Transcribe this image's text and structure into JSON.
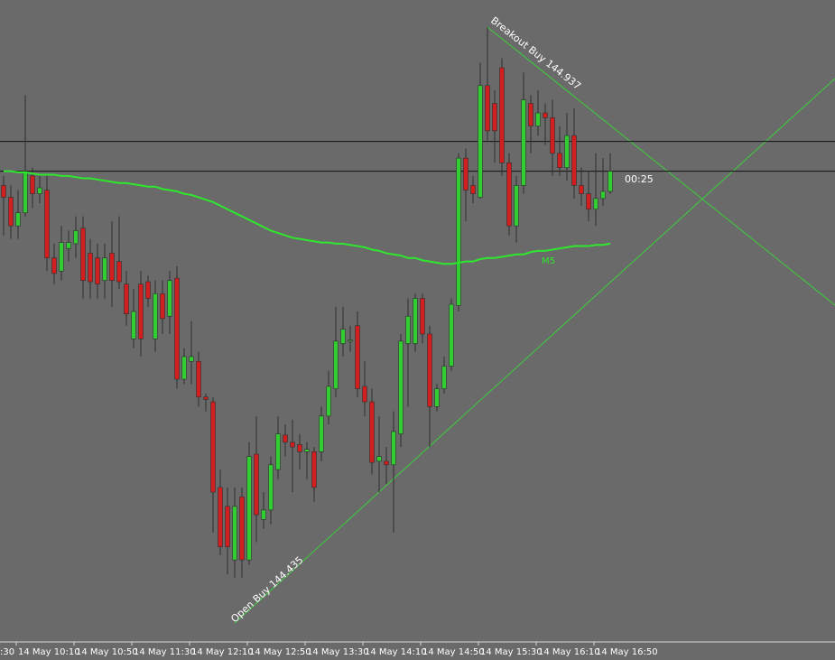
{
  "chart_data": {
    "type": "candlestick",
    "categories": [
      ":30",
      null,
      "14 May 10:10",
      null,
      null,
      null,
      null,
      null,
      null,
      null,
      "14 May 10:50",
      null,
      null,
      null,
      null,
      null,
      null,
      null,
      "14 May 11:30",
      null,
      null,
      null,
      null,
      null,
      null,
      null,
      "14 May 12:10",
      null,
      null,
      null,
      null,
      null,
      null,
      null,
      "14 May 12:50",
      null,
      null,
      null,
      null,
      null,
      null,
      null,
      "14 May 13:30",
      null,
      null,
      null,
      null,
      null,
      null,
      null,
      "14 May 14:10",
      null,
      null,
      null,
      null,
      null,
      null,
      null,
      "14 May 14:50",
      null,
      null,
      null,
      null,
      null,
      null,
      null,
      "14 May 15:30",
      null,
      null,
      null,
      null,
      null,
      null,
      null,
      "14 May 16:10",
      null,
      null,
      null,
      null,
      null,
      null,
      null,
      "14 May 16:50",
      null,
      null
    ],
    "ohlc": [
      [
        144.804,
        144.812,
        144.762,
        144.794
      ],
      [
        144.794,
        144.804,
        144.759,
        144.77
      ],
      [
        144.77,
        144.8,
        144.759,
        144.781
      ],
      [
        144.781,
        144.88,
        144.778,
        144.816
      ],
      [
        144.812,
        144.819,
        144.785,
        144.797
      ],
      [
        144.797,
        144.812,
        144.789,
        144.802
      ],
      [
        144.8,
        144.812,
        144.732,
        144.743
      ],
      [
        144.743,
        144.755,
        144.721,
        144.73
      ],
      [
        144.732,
        144.77,
        144.724,
        144.756
      ],
      [
        144.751,
        144.766,
        144.74,
        144.756
      ],
      [
        144.755,
        144.778,
        144.743,
        144.766
      ],
      [
        144.768,
        144.778,
        144.709,
        144.724
      ],
      [
        144.747,
        144.759,
        144.709,
        144.723
      ],
      [
        144.743,
        144.755,
        144.709,
        144.721
      ],
      [
        144.724,
        144.755,
        144.709,
        144.743
      ],
      [
        144.747,
        144.774,
        144.702,
        144.724
      ],
      [
        144.74,
        144.778,
        144.717,
        144.723
      ],
      [
        144.721,
        144.732,
        144.686,
        144.696
      ],
      [
        144.675,
        144.717,
        144.667,
        144.698
      ],
      [
        144.721,
        144.732,
        144.66,
        144.675
      ],
      [
        144.723,
        144.728,
        144.702,
        144.709
      ],
      [
        144.675,
        144.724,
        144.664,
        144.713
      ],
      [
        144.713,
        144.724,
        144.679,
        144.692
      ],
      [
        144.694,
        144.732,
        144.679,
        144.724
      ],
      [
        144.726,
        144.736,
        144.633,
        144.641
      ],
      [
        144.641,
        144.667,
        144.637,
        144.66
      ],
      [
        144.656,
        144.69,
        144.637,
        144.66
      ],
      [
        144.656,
        144.664,
        144.618,
        144.626
      ],
      [
        144.626,
        144.629,
        144.614,
        144.624
      ],
      [
        144.622,
        144.626,
        144.512,
        144.546
      ],
      [
        144.55,
        144.565,
        144.493,
        144.5
      ],
      [
        144.534,
        144.55,
        144.477,
        144.5
      ],
      [
        144.489,
        144.55,
        144.474,
        144.534
      ],
      [
        144.542,
        144.55,
        144.474,
        144.489
      ],
      [
        144.489,
        144.588,
        144.485,
        144.576
      ],
      [
        144.578,
        144.61,
        144.504,
        144.527
      ],
      [
        144.523,
        144.546,
        144.515,
        144.531
      ],
      [
        144.531,
        144.576,
        144.519,
        144.569
      ],
      [
        144.565,
        144.61,
        144.557,
        144.595
      ],
      [
        144.594,
        144.603,
        144.576,
        144.588
      ],
      [
        144.588,
        144.607,
        144.546,
        144.584
      ],
      [
        144.586,
        144.595,
        144.565,
        144.58
      ],
      [
        144.58,
        144.588,
        144.557,
        144.582
      ],
      [
        144.58,
        144.584,
        144.538,
        144.55
      ],
      [
        144.58,
        144.618,
        144.572,
        144.61
      ],
      [
        144.61,
        144.648,
        144.603,
        144.635
      ],
      [
        144.633,
        144.702,
        144.626,
        144.673
      ],
      [
        144.671,
        144.702,
        144.66,
        144.683
      ],
      [
        144.673,
        144.686,
        144.664,
        144.674
      ],
      [
        144.686,
        144.698,
        144.626,
        144.633
      ],
      [
        144.635,
        144.656,
        144.61,
        144.622
      ],
      [
        144.622,
        144.633,
        144.561,
        144.571
      ],
      [
        144.572,
        144.61,
        144.546,
        144.576
      ],
      [
        144.572,
        144.584,
        144.553,
        144.569
      ],
      [
        144.569,
        144.614,
        144.512,
        144.597
      ],
      [
        144.595,
        144.679,
        144.584,
        144.673
      ],
      [
        144.671,
        144.709,
        144.618,
        144.694
      ],
      [
        144.671,
        144.713,
        144.664,
        144.709
      ],
      [
        144.709,
        144.713,
        144.671,
        144.679
      ],
      [
        144.679,
        144.686,
        144.584,
        144.618
      ],
      [
        144.618,
        144.637,
        144.614,
        144.633
      ],
      [
        144.633,
        144.66,
        144.629,
        144.652
      ],
      [
        144.652,
        144.709,
        144.648,
        144.704
      ],
      [
        144.703,
        144.831,
        144.698,
        144.827
      ],
      [
        144.827,
        144.835,
        144.774,
        144.8
      ],
      [
        144.804,
        144.812,
        144.789,
        144.797
      ],
      [
        144.794,
        144.907,
        144.793,
        144.888
      ],
      [
        144.888,
        144.937,
        144.842,
        144.85
      ],
      [
        144.873,
        144.884,
        144.823,
        144.85
      ],
      [
        144.903,
        144.911,
        144.812,
        144.823
      ],
      [
        144.823,
        144.831,
        144.762,
        144.77
      ],
      [
        144.77,
        144.812,
        144.756,
        144.804
      ],
      [
        144.804,
        144.899,
        144.797,
        144.876
      ],
      [
        144.873,
        144.88,
        144.831,
        144.854
      ],
      [
        144.854,
        144.884,
        144.846,
        144.865
      ],
      [
        144.865,
        144.873,
        144.838,
        144.861
      ],
      [
        144.861,
        144.876,
        144.812,
        144.831
      ],
      [
        144.831,
        144.854,
        144.812,
        144.819
      ],
      [
        144.819,
        144.865,
        144.808,
        144.846
      ],
      [
        144.846,
        144.869,
        144.793,
        144.804
      ],
      [
        144.804,
        144.819,
        144.787,
        144.797
      ],
      [
        144.797,
        144.816,
        144.774,
        144.784
      ],
      [
        144.784,
        144.831,
        144.77,
        144.793
      ],
      [
        144.793,
        144.827,
        144.787,
        144.799
      ],
      [
        144.799,
        144.831,
        144.797,
        144.816
      ]
    ],
    "up_color": "#32cd32",
    "down_color": "#d21e1e",
    "wick_color": "#2e2e2e",
    "ylim": [
      144.42,
      144.96
    ],
    "ma": {
      "name": "M5",
      "color": "#2ee82e",
      "values": [
        144.816,
        144.816,
        144.815,
        144.815,
        144.814,
        144.813,
        144.813,
        144.813,
        144.812,
        144.812,
        144.811,
        144.81,
        144.81,
        144.809,
        144.808,
        144.807,
        144.806,
        144.806,
        144.805,
        144.804,
        144.803,
        144.803,
        144.801,
        144.8,
        144.799,
        144.797,
        144.796,
        144.794,
        144.792,
        144.79,
        144.787,
        144.784,
        144.781,
        144.778,
        144.775,
        144.772,
        144.769,
        144.766,
        144.764,
        144.762,
        144.76,
        144.759,
        144.758,
        144.757,
        144.756,
        144.756,
        144.755,
        144.755,
        144.754,
        144.753,
        144.752,
        144.75,
        144.749,
        144.747,
        144.746,
        144.745,
        144.743,
        144.743,
        144.741,
        144.74,
        144.739,
        144.738,
        144.738,
        144.739,
        144.74,
        144.74,
        144.742,
        144.743,
        144.743,
        144.744,
        144.745,
        144.746,
        144.746,
        144.748,
        144.749,
        144.749,
        144.75,
        144.751,
        144.752,
        144.753,
        144.753,
        144.753,
        144.754,
        144.754,
        144.755
      ]
    },
    "hlines": [
      144.841,
      144.816
    ],
    "annotations": [
      "Open Buy 144.435",
      "Breakout Buy 144.937"
    ],
    "timer": "00:25"
  }
}
